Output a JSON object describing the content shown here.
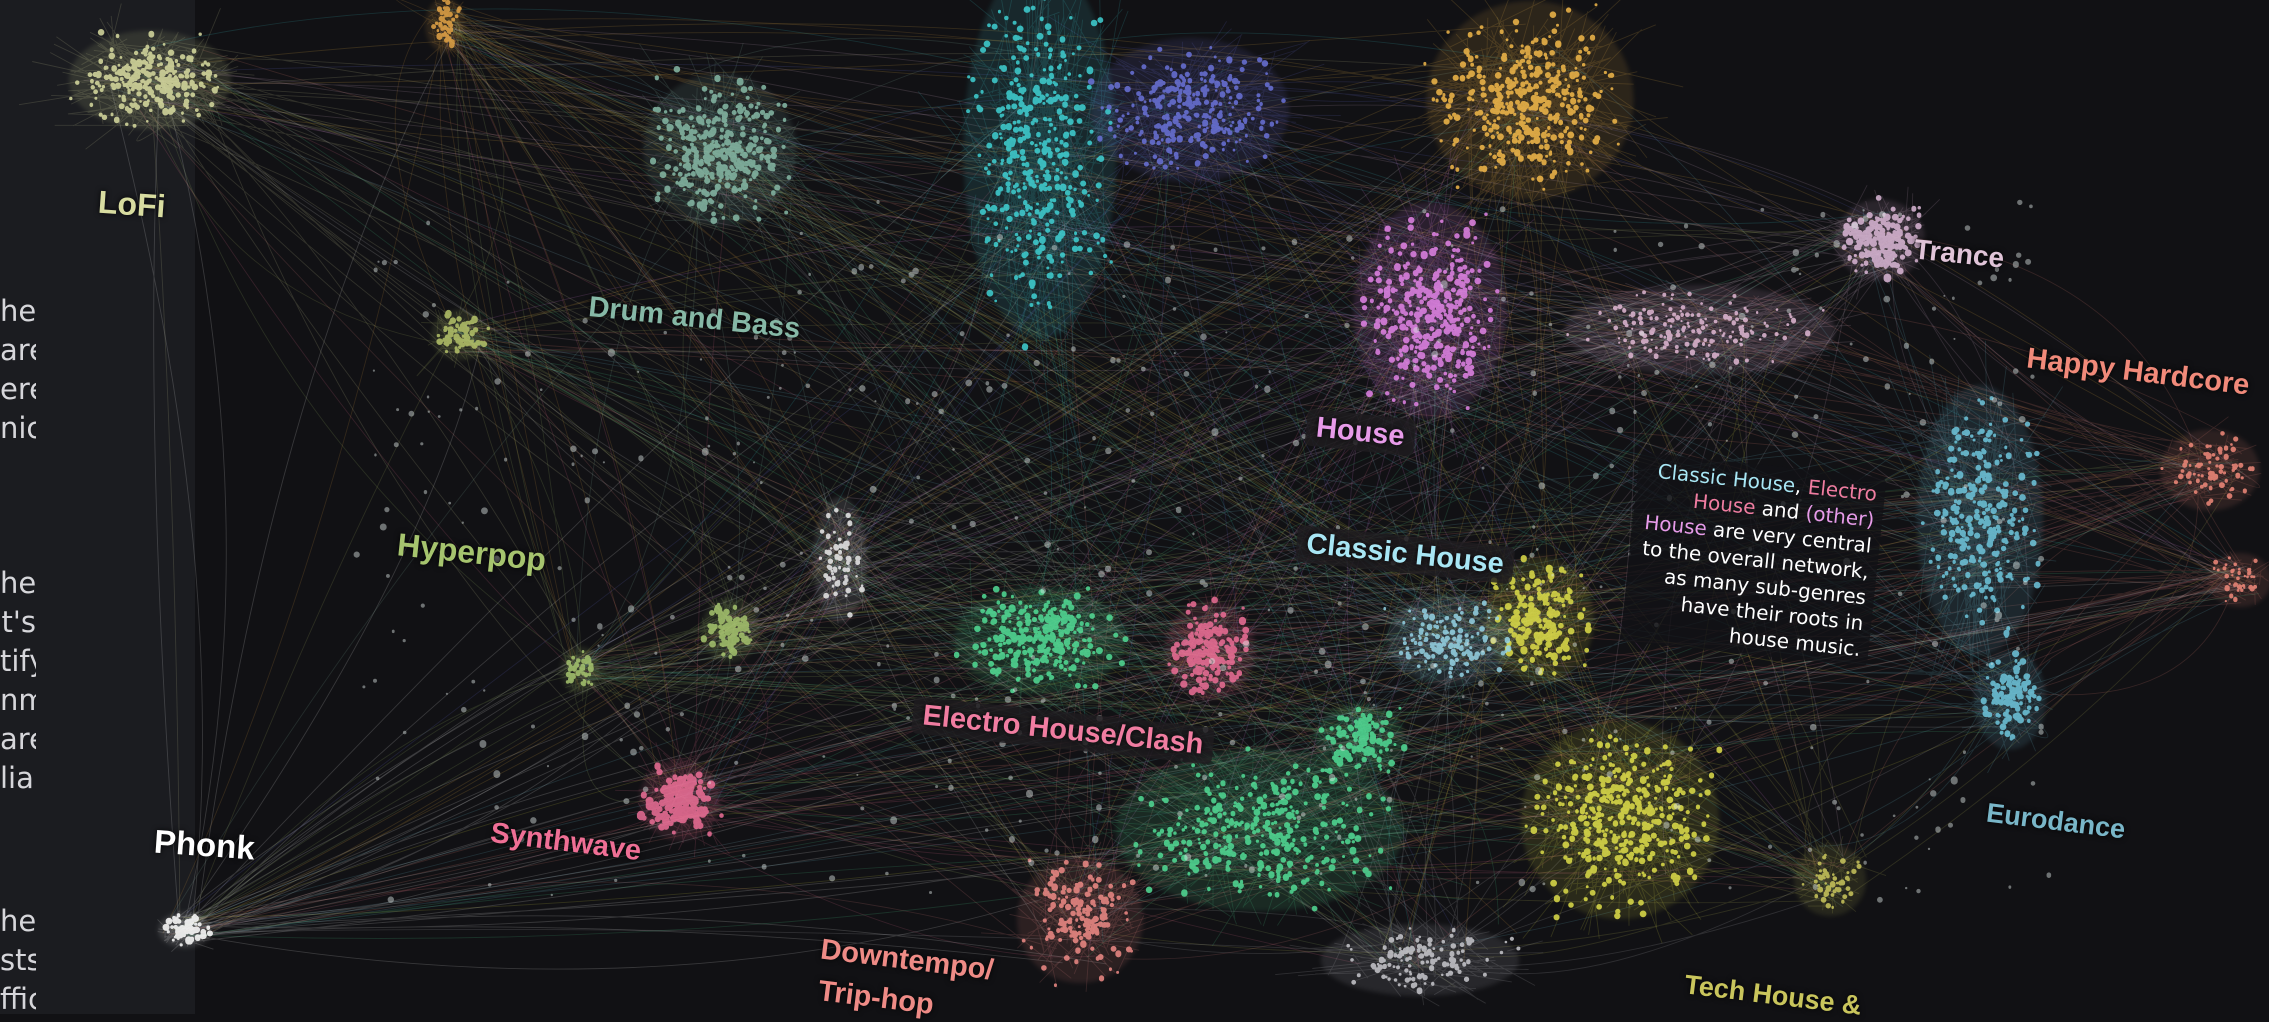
{
  "panel": {
    "fragments": [
      "he",
      "are",
      "ere",
      "nic",
      "her",
      "t's",
      "tify",
      "nm",
      "are",
      "lia,",
      "he",
      "sts",
      "ffic"
    ]
  },
  "genres": [
    {
      "key": "lofi",
      "label": "LoFi",
      "color": "#d8dca0"
    },
    {
      "key": "dnb",
      "label": "Drum and Bass",
      "color": "#86b8a6"
    },
    {
      "key": "hyperpop",
      "label": "Hyperpop",
      "color": "#a6c46e"
    },
    {
      "key": "phonk",
      "label": "Phonk",
      "color": "#ffffff"
    },
    {
      "key": "synthwave",
      "label": "Synthwave",
      "color": "#ef6f95"
    },
    {
      "key": "electro",
      "label": "Electro House/Clash",
      "color": "#f07da1"
    },
    {
      "key": "downtempo",
      "label": "Downtempo/",
      "color": "#ee8b86"
    },
    {
      "key": "triphop",
      "label": "Trip-hop",
      "color": "#ee8b86"
    },
    {
      "key": "house",
      "label": "House",
      "color": "#e79be9"
    },
    {
      "key": "classic",
      "label": "Classic House",
      "color": "#a8e6f4"
    },
    {
      "key": "trance",
      "label": "Trance",
      "color": "#e0c4d8"
    },
    {
      "key": "happy",
      "label": "Happy Hardcore",
      "color": "#f18a7a"
    },
    {
      "key": "eurodance",
      "label": "Eurodance",
      "color": "#79b6c8"
    },
    {
      "key": "tech",
      "label": "Tech House &",
      "color": "#c9c55c"
    }
  ],
  "callout": {
    "p1": "Classic House",
    "p2": ", ",
    "p3": "Electro House",
    "p4": " and ",
    "p5": "(other) House",
    "p6": " are very central to the overall network, as many sub-genres have their roots in house music.",
    "c1": "#a8e6f4",
    "c3": "#f07da1",
    "c5": "#e79be9"
  }
}
